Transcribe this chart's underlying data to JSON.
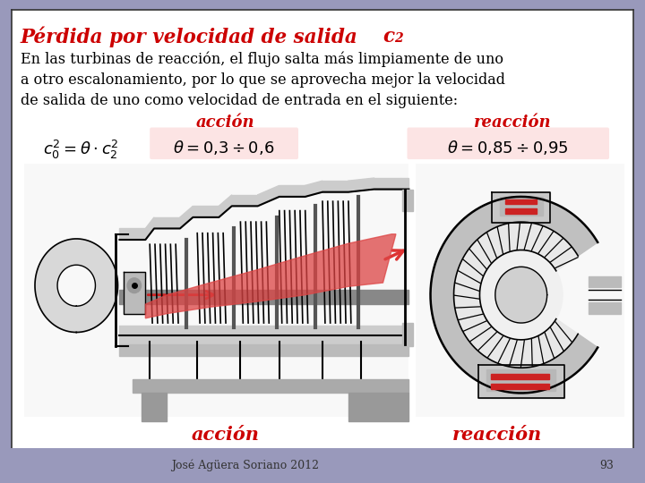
{
  "bg_color": "#9999bb",
  "box_bg": "#ffffff",
  "box_border": "#333333",
  "title_main": "Pérdida por velocidad de salida ",
  "title_sub": "c",
  "title_sub2": "2",
  "title_color": "#cc0000",
  "body_line1": "En las turbinas de reacción, el flujo salta más limpiamente de uno",
  "body_line2": "a otro escalonamiento, por lo que se aprovecha mejor la velocidad",
  "body_line3": "de salida de uno como velocidad de entrada en el siguiente:",
  "body_color": "#000000",
  "label_accion": "acción",
  "label_reaccion": "reacción",
  "label_color": "#cc0000",
  "formula_bg": "#fce4e4",
  "footer_text": "José Agüera Soriano 2012",
  "footer_page": "93",
  "footer_color": "#333333"
}
